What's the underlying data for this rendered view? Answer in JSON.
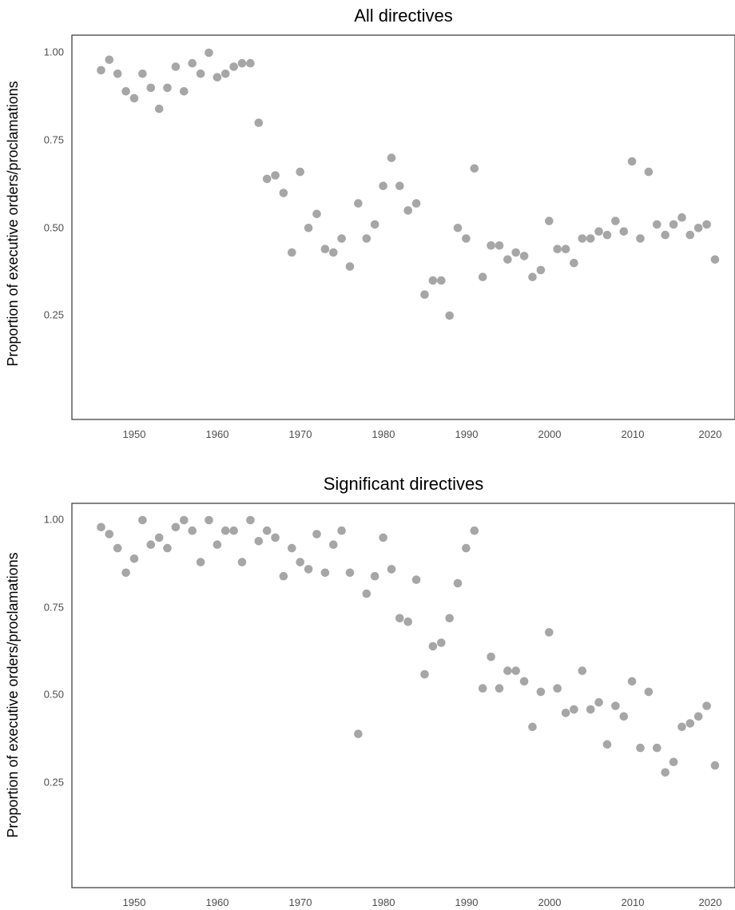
{
  "point_color": "#a6a6a6",
  "chart_data": [
    {
      "type": "scatter",
      "title": "All directives",
      "xlabel": "",
      "ylabel": "Proportion of executive orders/proclamations",
      "xlim": [
        1942.5,
        2023.5
      ],
      "ylim": [
        -0.05,
        1.05
      ],
      "xticks": [
        1950,
        1960,
        1970,
        1980,
        1990,
        2000,
        2010,
        2020
      ],
      "yticks": [
        0.25,
        0.5,
        0.75,
        1.0
      ],
      "ytick_labels": [
        "0.25",
        "0.50",
        "0.75",
        "1.00"
      ],
      "grid": false,
      "x": [
        1946,
        1947,
        1948,
        1949,
        1950,
        1951,
        1952,
        1953,
        1954,
        1955,
        1956,
        1957,
        1958,
        1959,
        1960,
        1961,
        1962,
        1963,
        1964,
        1965,
        1966,
        1967,
        1968,
        1969,
        1970,
        1971,
        1972,
        1973,
        1974,
        1975,
        1976,
        1977,
        1978,
        1979,
        1980,
        1981,
        1982,
        1983,
        1984,
        1985,
        1986,
        1987,
        1988,
        1989,
        1990,
        1991,
        1992,
        1993,
        1994,
        1995,
        1996,
        1997,
        1998,
        1999,
        2000,
        2001,
        2002,
        2003,
        2004,
        2005,
        2006,
        2007,
        2008,
        2009,
        2010,
        2011,
        2012,
        2013,
        2014,
        2015,
        2016,
        2017,
        2018,
        2019,
        2020
      ],
      "y": [
        0.95,
        0.98,
        0.94,
        0.89,
        0.87,
        0.94,
        0.9,
        0.84,
        0.9,
        0.96,
        0.89,
        0.97,
        0.94,
        1.0,
        0.93,
        0.94,
        0.96,
        0.97,
        0.97,
        0.8,
        0.64,
        0.65,
        0.6,
        0.43,
        0.66,
        0.5,
        0.54,
        0.44,
        0.43,
        0.47,
        0.39,
        0.57,
        0.47,
        0.51,
        0.62,
        0.7,
        0.62,
        0.55,
        0.57,
        0.31,
        0.35,
        0.35,
        0.25,
        0.5,
        0.47,
        0.67,
        0.36,
        0.45,
        0.45,
        0.41,
        0.43,
        0.42,
        0.36,
        0.38,
        0.52,
        0.44,
        0.44,
        0.4,
        0.47,
        0.47,
        0.49,
        0.48,
        0.52,
        0.49,
        0.69,
        0.47,
        0.66,
        0.51,
        0.48,
        0.51,
        0.53,
        0.48,
        0.5,
        0.51,
        0.41
      ]
    },
    {
      "type": "scatter",
      "title": "Significant directives",
      "xlabel": "",
      "ylabel": "Proportion of executive orders/proclamations",
      "xlim": [
        1942.5,
        2023.5
      ],
      "ylim": [
        -0.05,
        1.05
      ],
      "xticks": [
        1950,
        1960,
        1970,
        1980,
        1990,
        2000,
        2010,
        2020
      ],
      "yticks": [
        0.25,
        0.5,
        0.75,
        1.0
      ],
      "ytick_labels": [
        "0.25",
        "0.50",
        "0.75",
        "1.00"
      ],
      "grid": false,
      "x": [
        1946,
        1947,
        1948,
        1949,
        1950,
        1951,
        1952,
        1953,
        1954,
        1955,
        1956,
        1957,
        1958,
        1959,
        1960,
        1961,
        1962,
        1963,
        1964,
        1965,
        1966,
        1967,
        1968,
        1969,
        1970,
        1971,
        1972,
        1973,
        1974,
        1975,
        1976,
        1977,
        1978,
        1979,
        1980,
        1981,
        1982,
        1983,
        1984,
        1985,
        1986,
        1987,
        1988,
        1989,
        1990,
        1991,
        1992,
        1993,
        1994,
        1995,
        1996,
        1997,
        1998,
        1999,
        2000,
        2001,
        2002,
        2003,
        2004,
        2005,
        2006,
        2007,
        2008,
        2009,
        2010,
        2011,
        2012,
        2013,
        2014,
        2015,
        2016,
        2017,
        2018,
        2019,
        2020
      ],
      "y": [
        0.98,
        0.96,
        0.92,
        0.85,
        0.89,
        1.0,
        0.93,
        0.95,
        0.92,
        0.98,
        1.0,
        0.97,
        0.88,
        1.0,
        0.93,
        0.97,
        0.97,
        0.88,
        1.0,
        0.94,
        0.97,
        0.95,
        0.84,
        0.92,
        0.88,
        0.86,
        0.96,
        0.85,
        0.93,
        0.97,
        0.85,
        0.39,
        0.79,
        0.84,
        0.95,
        0.86,
        0.72,
        0.71,
        0.83,
        0.56,
        0.64,
        0.65,
        0.72,
        0.82,
        0.92,
        0.97,
        0.52,
        0.61,
        0.52,
        0.57,
        0.57,
        0.54,
        0.41,
        0.51,
        0.68,
        0.52,
        0.45,
        0.46,
        0.57,
        0.46,
        0.48,
        0.36,
        0.47,
        0.44,
        0.54,
        0.35,
        0.51,
        0.35,
        0.28,
        0.31,
        0.41,
        0.42,
        0.44,
        0.47,
        0.3
      ]
    }
  ]
}
